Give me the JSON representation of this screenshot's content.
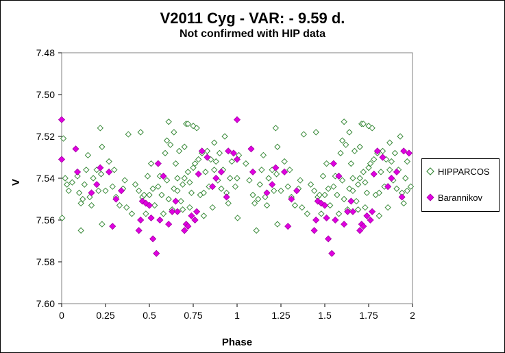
{
  "chart_data": {
    "type": "scatter",
    "title": "V2011 Cyg - VAR: - 9.59 d.",
    "subtitle": "Not confirmed with HIP data",
    "xlabel": "Phase",
    "ylabel": "V",
    "xlim": [
      0,
      2
    ],
    "ylim": [
      7.6,
      7.48
    ],
    "y_inverted": true,
    "x_ticks": [
      "0",
      "0.25",
      "0.5",
      "0.75",
      "1",
      "1.25",
      "1.5",
      "1.75",
      "2"
    ],
    "y_ticks": [
      "7.48",
      "7.50",
      "7.52",
      "7.54",
      "7.56",
      "7.58",
      "7.60"
    ],
    "grid": false,
    "legend_position": "right",
    "series": [
      {
        "name": "HIPPARCOS",
        "marker": "diamond-open",
        "color": "#3a8a3a",
        "points": [
          [
            0.003,
            7.559
          ],
          [
            0.01,
            7.521
          ],
          [
            0.02,
            7.54
          ],
          [
            0.03,
            7.543
          ],
          [
            0.04,
            7.546
          ],
          [
            0.06,
            7.542
          ],
          [
            0.09,
            7.539
          ],
          [
            0.1,
            7.547
          ],
          [
            0.11,
            7.552
          ],
          [
            0.11,
            7.565
          ],
          [
            0.12,
            7.55
          ],
          [
            0.13,
            7.543
          ],
          [
            0.14,
            7.536
          ],
          [
            0.15,
            7.529
          ],
          [
            0.16,
            7.549
          ],
          [
            0.17,
            7.553
          ],
          [
            0.18,
            7.54
          ],
          [
            0.2,
            7.536
          ],
          [
            0.21,
            7.546
          ],
          [
            0.22,
            7.516
          ],
          [
            0.225,
            7.538
          ],
          [
            0.23,
            7.525
          ],
          [
            0.23,
            7.562
          ],
          [
            0.25,
            7.546
          ],
          [
            0.27,
            7.532
          ],
          [
            0.29,
            7.544
          ],
          [
            0.3,
            7.536
          ],
          [
            0.31,
            7.549
          ],
          [
            0.33,
            7.553
          ],
          [
            0.35,
            7.545
          ],
          [
            0.36,
            7.541
          ],
          [
            0.37,
            7.554
          ],
          [
            0.38,
            7.519
          ],
          [
            0.4,
            7.557
          ],
          [
            0.42,
            7.543
          ],
          [
            0.44,
            7.546
          ],
          [
            0.45,
            7.518
          ],
          [
            0.46,
            7.549
          ],
          [
            0.47,
            7.548
          ],
          [
            0.48,
            7.557
          ],
          [
            0.49,
            7.539
          ],
          [
            0.5,
            7.548
          ],
          [
            0.51,
            7.533
          ],
          [
            0.52,
            7.545
          ],
          [
            0.53,
            7.553
          ],
          [
            0.55,
            7.544
          ],
          [
            0.56,
            7.539
          ],
          [
            0.57,
            7.548
          ],
          [
            0.58,
            7.557
          ],
          [
            0.59,
            7.528
          ],
          [
            0.6,
            7.522
          ],
          [
            0.6,
            7.541
          ],
          [
            0.61,
            7.513
          ],
          [
            0.61,
            7.55
          ],
          [
            0.62,
            7.524
          ],
          [
            0.63,
            7.555
          ],
          [
            0.64,
            7.518
          ],
          [
            0.64,
            7.545
          ],
          [
            0.65,
            7.533
          ],
          [
            0.66,
            7.54
          ],
          [
            0.66,
            7.546
          ],
          [
            0.67,
            7.527
          ],
          [
            0.68,
            7.551
          ],
          [
            0.69,
            7.555
          ],
          [
            0.69,
            7.543
          ],
          [
            0.7,
            7.54
          ],
          [
            0.7,
            7.525
          ],
          [
            0.71,
            7.514
          ],
          [
            0.72,
            7.514
          ],
          [
            0.72,
            7.537
          ],
          [
            0.73,
            7.542
          ],
          [
            0.73,
            7.554
          ],
          [
            0.74,
            7.547
          ],
          [
            0.75,
            7.535
          ],
          [
            0.75,
            7.515
          ],
          [
            0.76,
            7.533
          ],
          [
            0.77,
            7.516
          ],
          [
            0.78,
            7.531
          ],
          [
            0.79,
            7.548
          ],
          [
            0.8,
            7.528
          ],
          [
            0.81,
            7.547
          ],
          [
            0.81,
            7.558
          ],
          [
            0.82,
            7.537
          ],
          [
            0.83,
            7.527
          ],
          [
            0.84,
            7.544
          ],
          [
            0.85,
            7.531
          ],
          [
            0.86,
            7.554
          ],
          [
            0.87,
            7.536
          ],
          [
            0.87,
            7.523
          ],
          [
            0.88,
            7.532
          ],
          [
            0.89,
            7.541
          ],
          [
            0.9,
            7.528
          ],
          [
            0.91,
            7.545
          ],
          [
            0.92,
            7.536
          ],
          [
            0.93,
            7.52
          ],
          [
            0.94,
            7.547
          ],
          [
            0.95,
            7.552
          ],
          [
            0.96,
            7.54
          ],
          [
            0.97,
            7.532
          ],
          [
            0.99,
            7.544
          ],
          [
            1.0,
            7.54
          ],
          [
            1.003,
            7.559
          ],
          [
            1.01,
            7.529
          ],
          [
            1.05,
            7.533
          ],
          [
            1.07,
            7.541
          ],
          [
            1.09,
            7.548
          ],
          [
            1.1,
            7.552
          ],
          [
            1.11,
            7.565
          ],
          [
            1.12,
            7.55
          ],
          [
            1.13,
            7.543
          ],
          [
            1.14,
            7.536
          ],
          [
            1.15,
            7.529
          ],
          [
            1.16,
            7.549
          ],
          [
            1.17,
            7.553
          ],
          [
            1.18,
            7.54
          ],
          [
            1.2,
            7.536
          ],
          [
            1.21,
            7.546
          ],
          [
            1.22,
            7.516
          ],
          [
            1.225,
            7.538
          ],
          [
            1.23,
            7.525
          ],
          [
            1.23,
            7.562
          ],
          [
            1.25,
            7.546
          ],
          [
            1.27,
            7.532
          ],
          [
            1.29,
            7.544
          ],
          [
            1.3,
            7.536
          ],
          [
            1.31,
            7.549
          ],
          [
            1.33,
            7.553
          ],
          [
            1.35,
            7.545
          ],
          [
            1.36,
            7.541
          ],
          [
            1.37,
            7.554
          ],
          [
            1.38,
            7.519
          ],
          [
            1.4,
            7.557
          ],
          [
            1.42,
            7.543
          ],
          [
            1.44,
            7.546
          ],
          [
            1.45,
            7.518
          ],
          [
            1.46,
            7.549
          ],
          [
            1.47,
            7.548
          ],
          [
            1.48,
            7.557
          ],
          [
            1.49,
            7.539
          ],
          [
            1.5,
            7.548
          ],
          [
            1.51,
            7.533
          ],
          [
            1.52,
            7.545
          ],
          [
            1.53,
            7.553
          ],
          [
            1.55,
            7.544
          ],
          [
            1.56,
            7.539
          ],
          [
            1.57,
            7.548
          ],
          [
            1.58,
            7.557
          ],
          [
            1.59,
            7.528
          ],
          [
            1.6,
            7.522
          ],
          [
            1.6,
            7.541
          ],
          [
            1.61,
            7.513
          ],
          [
            1.61,
            7.55
          ],
          [
            1.62,
            7.524
          ],
          [
            1.63,
            7.555
          ],
          [
            1.64,
            7.518
          ],
          [
            1.64,
            7.545
          ],
          [
            1.65,
            7.533
          ],
          [
            1.66,
            7.54
          ],
          [
            1.66,
            7.546
          ],
          [
            1.67,
            7.527
          ],
          [
            1.68,
            7.551
          ],
          [
            1.69,
            7.555
          ],
          [
            1.69,
            7.543
          ],
          [
            1.7,
            7.54
          ],
          [
            1.7,
            7.525
          ],
          [
            1.71,
            7.514
          ],
          [
            1.72,
            7.514
          ],
          [
            1.72,
            7.537
          ],
          [
            1.73,
            7.542
          ],
          [
            1.73,
            7.554
          ],
          [
            1.74,
            7.547
          ],
          [
            1.75,
            7.535
          ],
          [
            1.75,
            7.515
          ],
          [
            1.76,
            7.533
          ],
          [
            1.77,
            7.516
          ],
          [
            1.78,
            7.531
          ],
          [
            1.79,
            7.548
          ],
          [
            1.8,
            7.528
          ],
          [
            1.81,
            7.547
          ],
          [
            1.81,
            7.558
          ],
          [
            1.82,
            7.537
          ],
          [
            1.83,
            7.527
          ],
          [
            1.84,
            7.544
          ],
          [
            1.85,
            7.531
          ],
          [
            1.86,
            7.554
          ],
          [
            1.87,
            7.536
          ],
          [
            1.87,
            7.523
          ],
          [
            1.88,
            7.532
          ],
          [
            1.89,
            7.541
          ],
          [
            1.9,
            7.528
          ],
          [
            1.91,
            7.545
          ],
          [
            1.92,
            7.536
          ],
          [
            1.93,
            7.52
          ],
          [
            1.94,
            7.547
          ],
          [
            1.95,
            7.552
          ],
          [
            1.96,
            7.54
          ],
          [
            1.97,
            7.532
          ],
          [
            1.99,
            7.544
          ],
          [
            1.97,
            7.546
          ]
        ]
      },
      {
        "name": "Barannikov",
        "marker": "diamond-filled",
        "color": "#e000e0",
        "points": [
          [
            0.0,
            7.512
          ],
          [
            0.0,
            7.531
          ],
          [
            0.08,
            7.526
          ],
          [
            0.09,
            7.537
          ],
          [
            0.17,
            7.547
          ],
          [
            0.2,
            7.543
          ],
          [
            0.22,
            7.535
          ],
          [
            0.27,
            7.537
          ],
          [
            0.29,
            7.563
          ],
          [
            0.31,
            7.55
          ],
          [
            0.34,
            7.546
          ],
          [
            0.44,
            7.565
          ],
          [
            0.45,
            7.56
          ],
          [
            0.46,
            7.551
          ],
          [
            0.48,
            7.552
          ],
          [
            0.5,
            7.553
          ],
          [
            0.51,
            7.559
          ],
          [
            0.52,
            7.569
          ],
          [
            0.54,
            7.576
          ],
          [
            0.55,
            7.533
          ],
          [
            0.56,
            7.56
          ],
          [
            0.58,
            7.539
          ],
          [
            0.61,
            7.562
          ],
          [
            0.63,
            7.556
          ],
          [
            0.65,
            7.551
          ],
          [
            0.66,
            7.556
          ],
          [
            0.7,
            7.565
          ],
          [
            0.71,
            7.562
          ],
          [
            0.72,
            7.563
          ],
          [
            0.74,
            7.558
          ],
          [
            0.76,
            7.56
          ],
          [
            0.77,
            7.556
          ],
          [
            0.78,
            7.538
          ],
          [
            0.8,
            7.527
          ],
          [
            0.83,
            7.53
          ],
          [
            0.86,
            7.544
          ],
          [
            0.88,
            7.54
          ],
          [
            0.91,
            7.537
          ],
          [
            0.94,
            7.549
          ],
          [
            0.95,
            7.527
          ],
          [
            0.98,
            7.528
          ],
          [
            1.0,
            7.512
          ],
          [
            1.0,
            7.531
          ],
          [
            1.08,
            7.526
          ],
          [
            1.09,
            7.537
          ],
          [
            1.17,
            7.547
          ],
          [
            1.2,
            7.543
          ],
          [
            1.22,
            7.535
          ],
          [
            1.27,
            7.537
          ],
          [
            1.29,
            7.563
          ],
          [
            1.31,
            7.55
          ],
          [
            1.34,
            7.546
          ],
          [
            1.44,
            7.565
          ],
          [
            1.45,
            7.56
          ],
          [
            1.46,
            7.551
          ],
          [
            1.48,
            7.552
          ],
          [
            1.5,
            7.553
          ],
          [
            1.51,
            7.559
          ],
          [
            1.52,
            7.569
          ],
          [
            1.54,
            7.576
          ],
          [
            1.55,
            7.533
          ],
          [
            1.56,
            7.56
          ],
          [
            1.58,
            7.539
          ],
          [
            1.61,
            7.562
          ],
          [
            1.63,
            7.556
          ],
          [
            1.65,
            7.551
          ],
          [
            1.66,
            7.556
          ],
          [
            1.7,
            7.565
          ],
          [
            1.71,
            7.562
          ],
          [
            1.72,
            7.563
          ],
          [
            1.74,
            7.558
          ],
          [
            1.76,
            7.56
          ],
          [
            1.77,
            7.556
          ],
          [
            1.78,
            7.538
          ],
          [
            1.8,
            7.527
          ],
          [
            1.83,
            7.53
          ],
          [
            1.86,
            7.544
          ],
          [
            1.88,
            7.54
          ],
          [
            1.91,
            7.537
          ],
          [
            1.94,
            7.549
          ],
          [
            1.95,
            7.527
          ],
          [
            1.98,
            7.528
          ]
        ]
      }
    ]
  }
}
